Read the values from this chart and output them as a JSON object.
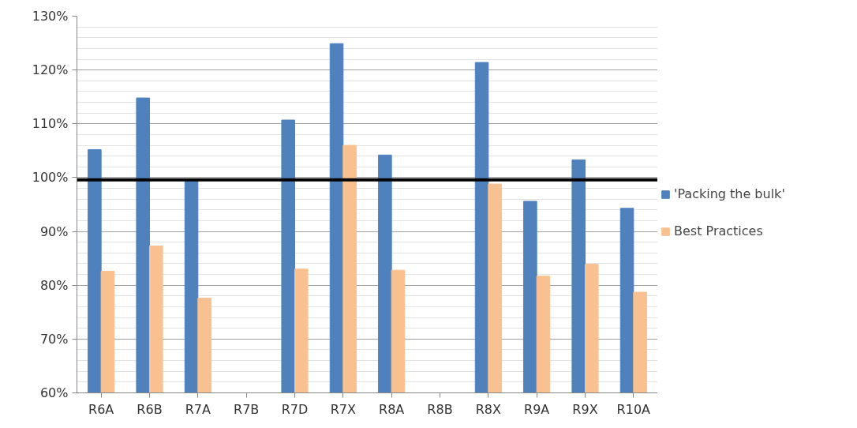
{
  "chart_data": {
    "type": "bar",
    "categories": [
      "R6A",
      "R6B",
      "R7A",
      "R7B",
      "R7D",
      "R7X",
      "R8A",
      "R8B",
      "R8X",
      "R9A",
      "R9X",
      "R10A"
    ],
    "series": [
      {
        "name": "'Packing the bulk'",
        "color": "#4f81bd",
        "values": [
          105.2,
          114.8,
          99.4,
          null,
          110.7,
          124.9,
          104.2,
          null,
          121.4,
          95.6,
          103.3,
          94.3
        ]
      },
      {
        "name": "Best Practices",
        "color": "#f9c090",
        "values": [
          82.6,
          87.3,
          77.6,
          null,
          83.0,
          106.0,
          82.8,
          null,
          98.8,
          81.7,
          83.9,
          78.7
        ]
      }
    ],
    "ylim": [
      60,
      130
    ],
    "yticks": [
      {
        "value": 60,
        "label": "60%"
      },
      {
        "value": 70,
        "label": "70%"
      },
      {
        "value": 80,
        "label": "80%"
      },
      {
        "value": 90,
        "label": "90%"
      },
      {
        "value": 100,
        "label": "100%"
      },
      {
        "value": 110,
        "label": "110%"
      },
      {
        "value": 120,
        "label": "120%"
      },
      {
        "value": 130,
        "label": "130%"
      }
    ],
    "ref_lines": [
      {
        "axis": "y",
        "value": 99.6,
        "label": null,
        "color": "#000000"
      }
    ],
    "grid": "y",
    "legend": "right"
  }
}
